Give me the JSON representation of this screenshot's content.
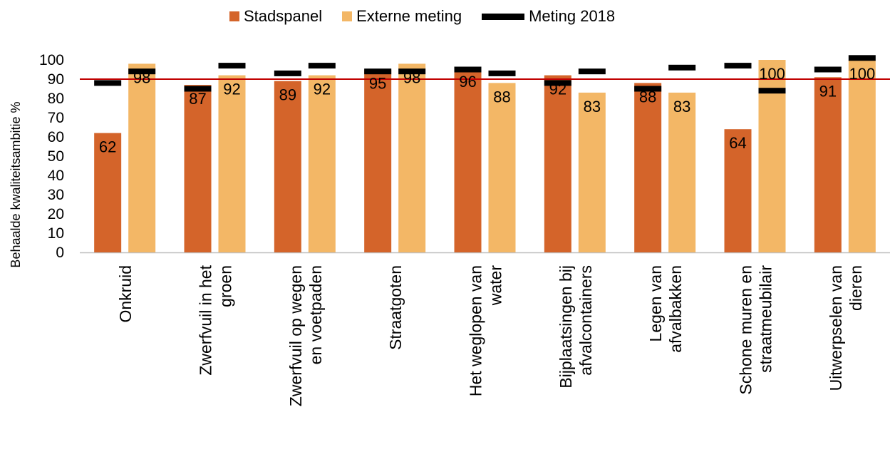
{
  "chart_data": {
    "type": "bar",
    "ylabel": "Behaalde kwaliteitsambitie %",
    "xlabel": "",
    "ylim": [
      0,
      100
    ],
    "y_ticks": [
      "0",
      "10",
      "20",
      "30",
      "40",
      "50",
      "60",
      "70",
      "80",
      "90",
      "100"
    ],
    "ambition_line": 90,
    "categories": [
      [
        "Onkruid"
      ],
      [
        "Zwerfvuil in het",
        "groen"
      ],
      [
        "Zwerfvuil op wegen",
        "en voetpaden"
      ],
      [
        "Straatgoten"
      ],
      [
        "Het weglopen van",
        "water"
      ],
      [
        "Bijplaatsingen bij",
        "afvalcontainers"
      ],
      [
        "Legen van",
        "afvalbakken"
      ],
      [
        "Schone muren en",
        "straatmeubilair"
      ],
      [
        "Uitwerpselen van",
        "dieren"
      ]
    ],
    "series": [
      {
        "name": "Stadspanel",
        "values": [
          62,
          87,
          89,
          95,
          96,
          92,
          88,
          64,
          91
        ],
        "color": "#d4642a"
      },
      {
        "name": "Externe meting",
        "values": [
          98,
          92,
          92,
          98,
          88,
          83,
          83,
          100,
          100
        ],
        "color": "#f3b766"
      },
      {
        "name": "Meting 2018",
        "color": "#000000",
        "stadspanel": [
          88,
          85,
          93,
          94,
          95,
          88,
          85,
          97,
          95
        ],
        "externe": [
          94,
          97,
          97,
          94,
          93,
          94,
          96,
          84,
          101
        ]
      }
    ],
    "line_color": "#c00000"
  },
  "legend": {
    "stadspanel": "Stadspanel",
    "externe": "Externe meting",
    "meting": "Meting 2018"
  }
}
